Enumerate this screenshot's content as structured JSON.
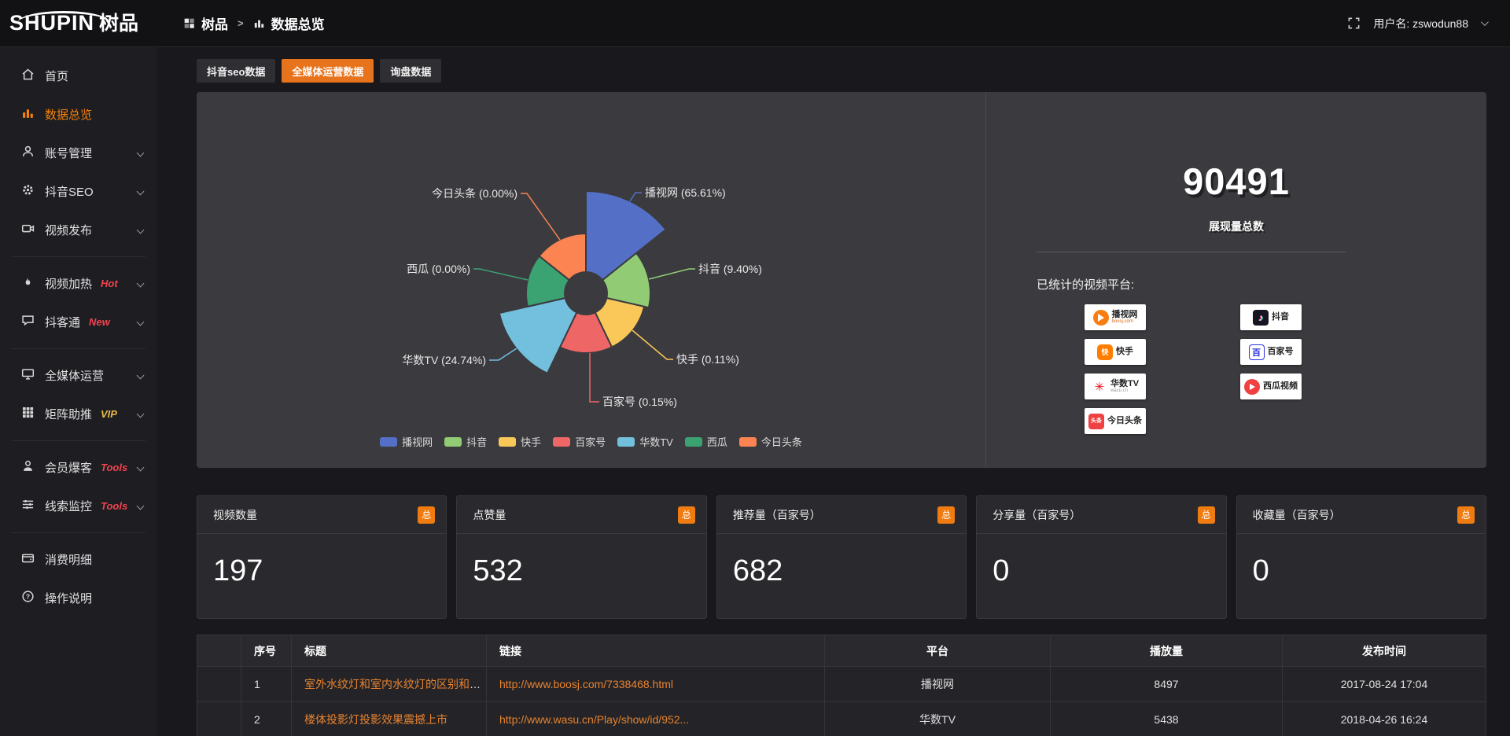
{
  "app": {
    "logo_primary": "SHUPIN",
    "logo_secondary": "树品",
    "username": "用户名: zswodun88"
  },
  "breadcrumb": {
    "root": "树品",
    "separator": ">",
    "current": "数据总览"
  },
  "tabs": [
    {
      "label": "抖音seo数据",
      "active": false
    },
    {
      "label": "全媒体运营数据",
      "active": true
    },
    {
      "label": "询盘数据",
      "active": false
    }
  ],
  "sidebar": {
    "groups": [
      {
        "items": [
          {
            "label": "首页",
            "icon": "home-icon",
            "active": false,
            "expandable": false
          },
          {
            "label": "数据总览",
            "icon": "bar-chart-icon",
            "active": true,
            "expandable": false
          },
          {
            "label": "账号管理",
            "icon": "user-icon",
            "active": false,
            "expandable": true
          },
          {
            "label": "抖音SEO",
            "icon": "gear-icon",
            "active": false,
            "expandable": true
          },
          {
            "label": "视频发布",
            "icon": "video-publish-icon",
            "active": false,
            "expandable": true
          }
        ]
      },
      {
        "items": [
          {
            "label": "视频加热",
            "icon": "heat-icon",
            "badge": "Hot",
            "badge_color": "#f4434d",
            "expandable": true
          },
          {
            "label": "抖客通",
            "icon": "chat-icon",
            "badge": "New",
            "badge_color": "#f4434d",
            "expandable": true
          }
        ]
      },
      {
        "items": [
          {
            "label": "全媒体运营",
            "icon": "monitor-icon",
            "expandable": true
          },
          {
            "label": "矩阵助推",
            "icon": "grid-icon",
            "badge": "VIP",
            "badge_color": "#e9b949",
            "expandable": true
          }
        ]
      },
      {
        "items": [
          {
            "label": "会员爆客",
            "icon": "member-icon",
            "badge": "Tools",
            "badge_color": "#f4434d",
            "expandable": true
          },
          {
            "label": "线索监控",
            "icon": "sliders-icon",
            "badge": "Tools",
            "badge_color": "#f4434d",
            "expandable": true
          }
        ]
      },
      {
        "items": [
          {
            "label": "消费明细",
            "icon": "wallet-icon",
            "expandable": false
          },
          {
            "label": "操作说明",
            "icon": "question-icon",
            "expandable": false
          }
        ]
      }
    ]
  },
  "chart_data": {
    "type": "pie",
    "variant": "nightingale-rose",
    "unit": "%",
    "categories": [
      "播视网",
      "抖音",
      "快手",
      "百家号",
      "华数TV",
      "西瓜",
      "今日头条"
    ],
    "values": [
      65.61,
      9.4,
      0.11,
      0.15,
      24.74,
      0.0,
      0.0
    ],
    "labels": [
      "播视网 (65.61%)",
      "抖音 (9.40%)",
      "快手 (0.11%)",
      "百家号 (0.15%)",
      "华数TV (24.74%)",
      "西瓜 (0.00%)",
      "今日头条 (0.00%)"
    ],
    "colors": [
      "#5470c6",
      "#91cc75",
      "#fac858",
      "#ee6666",
      "#73c0de",
      "#3ba272",
      "#fc8452"
    ],
    "legend": [
      "播视网",
      "抖音",
      "快手",
      "百家号",
      "华数TV",
      "西瓜",
      "今日头条"
    ],
    "legend_position": "bottom"
  },
  "overview": {
    "total_value": "90491",
    "total_label": "展现量总数",
    "platforms_title": "已统计的视频平台:",
    "platforms": [
      {
        "name": "播视网",
        "sub": "boosj.com",
        "icon": "boosj-logo"
      },
      {
        "name": "抖音",
        "sub": "",
        "icon": "douyin-logo"
      },
      {
        "name": "快手",
        "sub": "",
        "icon": "kuaishou-logo"
      },
      {
        "name": "百家号",
        "sub": "",
        "icon": "baijiahao-logo"
      },
      {
        "name": "华数TV",
        "sub": "wasu.cn",
        "icon": "wasu-logo"
      },
      {
        "name": "西瓜视频",
        "sub": "",
        "icon": "xigua-logo"
      },
      {
        "name": "今日头条",
        "sub": "",
        "icon": "toutiao-logo"
      }
    ]
  },
  "stat_cards": [
    {
      "title": "视频数量",
      "badge": "总",
      "value": "197"
    },
    {
      "title": "点赞量",
      "badge": "总",
      "value": "532"
    },
    {
      "title": "推荐量（百家号）",
      "badge": "总",
      "value": "682"
    },
    {
      "title": "分享量（百家号）",
      "badge": "总",
      "value": "0"
    },
    {
      "title": "收藏量（百家号）",
      "badge": "总",
      "value": "0"
    }
  ],
  "table": {
    "headers": [
      "序号",
      "标题",
      "链接",
      "平台",
      "播放量",
      "发布时间"
    ],
    "rows": [
      {
        "no": "1",
        "title": "室外水纹灯和室内水纹灯的区别和简介",
        "link": "http://www.boosj.com/7338468.html",
        "platform": "播视网",
        "plays": "8497",
        "published": "2017-08-24 17:04"
      },
      {
        "no": "2",
        "title": "楼体投影灯投影效果震撼上市",
        "link": "http://www.wasu.cn/Play/show/id/952...",
        "platform": "华数TV",
        "plays": "5438",
        "published": "2018-04-26 16:24"
      }
    ]
  }
}
